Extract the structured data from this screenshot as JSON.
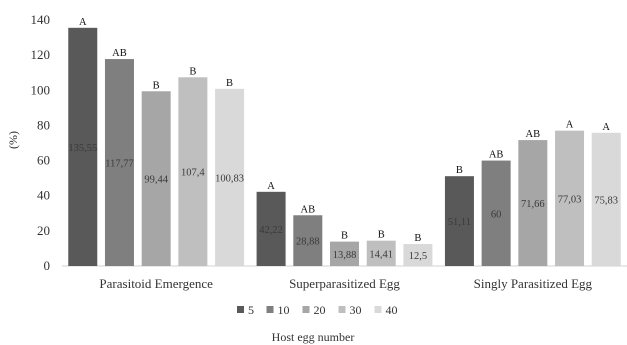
{
  "chart_data": {
    "type": "bar",
    "xlabel": "Host egg number",
    "ylabel": "(%)",
    "ylim": [
      0,
      140
    ],
    "yticks": [
      0,
      20,
      40,
      60,
      80,
      100,
      120,
      140
    ],
    "grid": false,
    "legend_position": "bottom",
    "categories": [
      "Parasitoid Emergence",
      "Superparasitized  Egg",
      "Singly Parasitized Egg"
    ],
    "series": [
      {
        "name": "5",
        "color": "#595959",
        "values": [
          135.55,
          42.22,
          51.11
        ],
        "value_labels": [
          "135,55",
          "42,22",
          "51,11"
        ],
        "sig": [
          "A",
          "A",
          "B"
        ]
      },
      {
        "name": "10",
        "color": "#7f7f7f",
        "values": [
          117.77,
          28.88,
          60
        ],
        "value_labels": [
          "117,77",
          "28,88",
          "60"
        ],
        "sig": [
          "AB",
          "AB",
          "AB"
        ]
      },
      {
        "name": "20",
        "color": "#a6a6a6",
        "values": [
          99.44,
          13.88,
          71.66
        ],
        "value_labels": [
          "99,44",
          "13,88",
          "71,66"
        ],
        "sig": [
          "B",
          "B",
          "AB"
        ]
      },
      {
        "name": "30",
        "color": "#bfbfbf",
        "values": [
          107.4,
          14.41,
          77.03
        ],
        "value_labels": [
          "107,4",
          "14,41",
          "77,03"
        ],
        "sig": [
          "B",
          "B",
          "A"
        ]
      },
      {
        "name": "40",
        "color": "#d9d9d9",
        "values": [
          100.83,
          12.5,
          75.83
        ],
        "value_labels": [
          "100,83",
          "12,5",
          "75,83"
        ],
        "sig": [
          "B",
          "B",
          "A"
        ]
      }
    ]
  }
}
